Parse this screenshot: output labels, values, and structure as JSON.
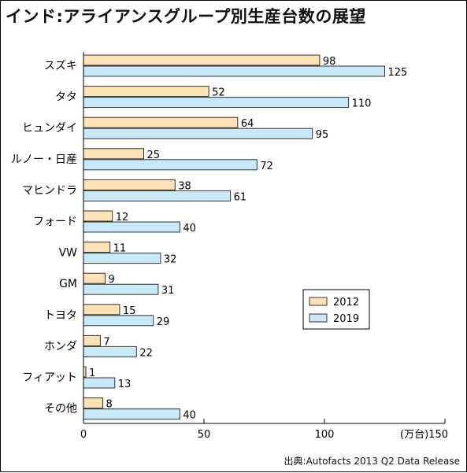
{
  "title": "インド:アライアンスグループ別生産台数の展望",
  "source": "出典:Autofacts 2013 Q2 Data Release",
  "chart_data": {
    "type": "bar",
    "orientation": "horizontal",
    "title": "インド:アライアンスグループ別生産台数の展望",
    "unit": "(万台)",
    "xlim": [
      0,
      150
    ],
    "xticks": [
      0,
      50,
      100,
      150
    ],
    "grid": false,
    "legend_position": "lower-right",
    "categories": [
      "スズキ",
      "タタ",
      "ヒュンダイ",
      "ルノー・日産",
      "マヒンドラ",
      "フォード",
      "VW",
      "GM",
      "トヨタ",
      "ホンダ",
      "フィアット",
      "その他"
    ],
    "series": [
      {
        "name": "2012",
        "color": "#fce2b4",
        "values": [
          98,
          52,
          64,
          25,
          38,
          12,
          11,
          9,
          15,
          7,
          1,
          8
        ]
      },
      {
        "name": "2019",
        "color": "#c8e9f7",
        "values": [
          125,
          110,
          95,
          72,
          61,
          40,
          32,
          31,
          29,
          22,
          13,
          40
        ]
      }
    ]
  }
}
